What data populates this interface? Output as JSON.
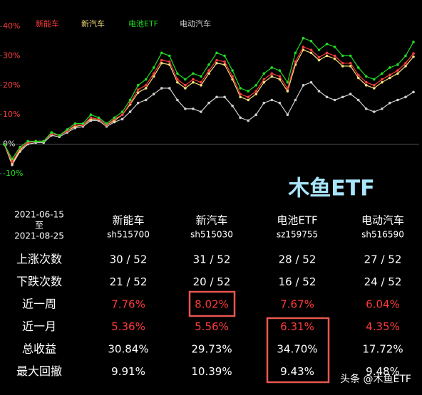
{
  "chart_data": {
    "type": "line",
    "series": [
      {
        "name": "新能车",
        "color": "#ff3b3b",
        "values": [
          0,
          -6,
          -1.5,
          0.5,
          1,
          1,
          3.5,
          3,
          4.5,
          6.5,
          6.5,
          9,
          8.5,
          6.5,
          8.5,
          10,
          14,
          18.5,
          20,
          24,
          28.5,
          28,
          22,
          20,
          22,
          21,
          25,
          28.5,
          28,
          23,
          17,
          16,
          18,
          22,
          24,
          23,
          19,
          28,
          33,
          32,
          29.5,
          31,
          30,
          27.5,
          27.5,
          23.5,
          21,
          20,
          22,
          23.5,
          25,
          27.5,
          30.8
        ]
      },
      {
        "name": "新汽车",
        "color": "#f5dc7a",
        "values": [
          0,
          -6.5,
          -2,
          0.5,
          1,
          1,
          3.5,
          3,
          4.5,
          6,
          6.5,
          8.5,
          8.5,
          6.5,
          8,
          10,
          13.5,
          17.5,
          19,
          23,
          27.5,
          27,
          21,
          19,
          21,
          20,
          24,
          27.5,
          27,
          22,
          16,
          15,
          17,
          21,
          23,
          22,
          18,
          27,
          32,
          31,
          28.5,
          30,
          29,
          26.5,
          26.5,
          22.5,
          20,
          19,
          21,
          22.5,
          24,
          26.5,
          29.7
        ]
      },
      {
        "name": "电池ETF",
        "color": "#22dd22",
        "values": [
          0,
          -5,
          -1,
          1,
          1,
          1,
          4,
          3,
          5,
          7,
          7,
          10,
          9,
          7,
          9,
          11,
          15,
          20,
          22,
          26,
          31,
          30,
          24,
          22,
          24,
          23,
          27,
          31,
          30,
          25,
          19,
          18,
          20,
          24,
          26,
          25,
          21,
          31,
          36,
          35,
          32,
          34,
          33,
          30,
          30,
          26,
          23,
          22,
          24,
          26,
          27,
          30,
          34.7
        ]
      },
      {
        "name": "电动汽车",
        "color": "#d0d0d0",
        "values": [
          0,
          -7,
          -2.5,
          0,
          0.5,
          0.5,
          3,
          2.5,
          4,
          5.5,
          6,
          8,
          8,
          6,
          7.5,
          8.5,
          11,
          14,
          15,
          17,
          19,
          19,
          15,
          12,
          12,
          11,
          14,
          16,
          16,
          13,
          9,
          8,
          10,
          14,
          15,
          14,
          10,
          15,
          20,
          21,
          18,
          16,
          15,
          16,
          17,
          15,
          12,
          11,
          12,
          14,
          15,
          16,
          17.7
        ]
      }
    ],
    "ylim": [
      -10,
      40
    ],
    "yticks": [
      {
        "value": -10,
        "label": "-10%"
      },
      {
        "value": 0,
        "label": "0%"
      },
      {
        "value": 10,
        "label": "10%"
      },
      {
        "value": 20,
        "label": "20%"
      },
      {
        "value": 30,
        "label": "30%"
      },
      {
        "value": 40,
        "label": "40%"
      }
    ],
    "grid": false
  },
  "watermark": "木鱼ETF",
  "table": {
    "period": [
      "2021-06-15",
      "至",
      "2021-08-25"
    ],
    "columns": [
      {
        "name": "新能车",
        "code": "sh515700"
      },
      {
        "name": "新汽车",
        "code": "sh515030"
      },
      {
        "name": "电池ETF",
        "code": "sz159755"
      },
      {
        "name": "电动汽车",
        "code": "sh516590"
      }
    ],
    "rows": [
      {
        "label": "上涨次数",
        "cells": [
          "30 / 52",
          "31 / 52",
          "28 / 52",
          "27 / 52"
        ]
      },
      {
        "label": "下跌次数",
        "cells": [
          "21 / 52",
          "20 / 52",
          "16 / 52",
          "24 / 52"
        ]
      },
      {
        "label": "近一周",
        "cells": [
          "7.76%",
          "8.02%",
          "7.67%",
          "6.04%"
        ],
        "highlight": true
      },
      {
        "label": "近一月",
        "cells": [
          "5.36%",
          "5.56%",
          "6.31%",
          "4.35%"
        ],
        "highlight": true
      },
      {
        "label": "总收益",
        "cells": [
          "30.84%",
          "29.73%",
          "34.70%",
          "17.72%"
        ]
      },
      {
        "label": "最大回撤",
        "cells": [
          "9.91%",
          "10.39%",
          "9.43%",
          "9.48%"
        ]
      }
    ]
  },
  "footer": "头条 @木鱼ETF"
}
